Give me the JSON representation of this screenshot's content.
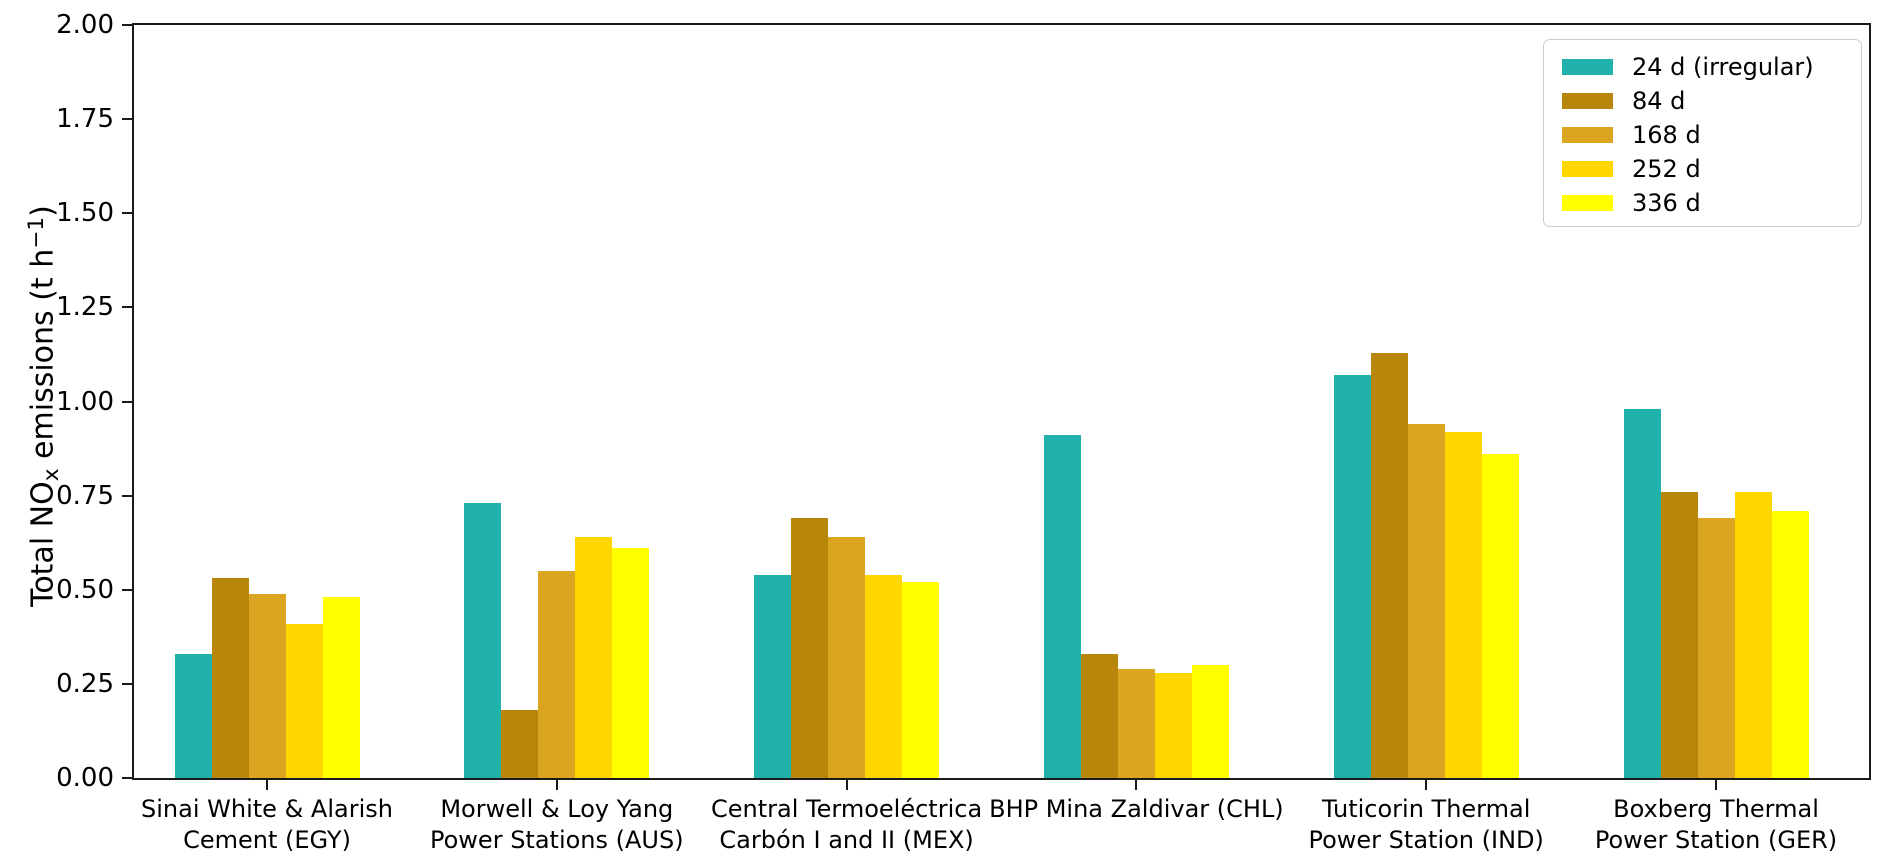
{
  "figure": {
    "background": "#ffffff",
    "text_color": "#000000",
    "axis_color": "#1a1a1a"
  },
  "chart_data": {
    "type": "bar",
    "title": "",
    "xlabel": "",
    "ylabel": "Total NOₓ emissions (t h⁻¹)",
    "ylabel_parts": {
      "pre": "Total NO",
      "sub": "x",
      "mid": " emissions (t h",
      "sup": "−1",
      "post": ")"
    },
    "ylim": [
      0,
      2
    ],
    "yticks": [
      "0.00",
      "0.25",
      "0.50",
      "0.75",
      "1.00",
      "1.25",
      "1.50",
      "1.75",
      "2.00"
    ],
    "grid": false,
    "legend_position": "upper right",
    "categories": [
      "Sinai White & Alarish Cement (EGY)",
      "Morwell & Loy Yang Power Stations (AUS)",
      "Central Termoeléctrica Carbón I and II (MEX)",
      "BHP Mina Zaldivar (CHL)",
      "Tuticorin Thermal Power Station (IND)",
      "Boxberg Thermal Power Station (GER)"
    ],
    "category_lines": [
      [
        "Sinai White & Alarish",
        "Cement (EGY)"
      ],
      [
        "Morwell & Loy Yang",
        "Power Stations (AUS)"
      ],
      [
        "Central Termoeléctrica",
        "Carbón I and II (MEX)"
      ],
      [
        "BHP Mina Zaldivar (CHL)"
      ],
      [
        "Tuticorin Thermal",
        "Power Station (IND)"
      ],
      [
        "Boxberg Thermal",
        "Power Station (GER)"
      ]
    ],
    "series": [
      {
        "name": "24 d (irregular)",
        "color": "#20B2AA",
        "values": [
          0.33,
          0.73,
          0.54,
          0.91,
          1.07,
          0.98
        ]
      },
      {
        "name": "84 d",
        "color": "#B8860B",
        "values": [
          0.53,
          0.18,
          0.69,
          0.33,
          1.13,
          0.76
        ]
      },
      {
        "name": "168 d",
        "color": "#DAA520",
        "values": [
          0.49,
          0.55,
          0.64,
          0.29,
          0.94,
          0.69
        ]
      },
      {
        "name": "252 d",
        "color": "#FFD700",
        "values": [
          0.41,
          0.64,
          0.54,
          0.28,
          0.92,
          0.76
        ]
      },
      {
        "name": "336 d",
        "color": "#FFFF00",
        "values": [
          0.48,
          0.61,
          0.52,
          0.3,
          0.86,
          0.71
        ]
      }
    ]
  }
}
